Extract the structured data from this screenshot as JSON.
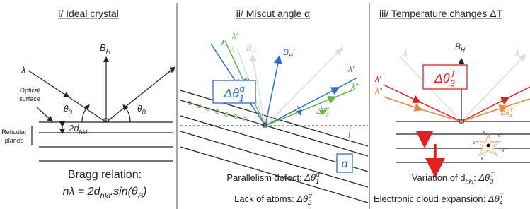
{
  "panels": [
    {
      "title": "i/ Ideal crystal",
      "incident": "λ",
      "reflected": "λ",
      "normal": {
        "base": "B",
        "sub": "H"
      },
      "angle_left": {
        "base": "θ",
        "sub": "B"
      },
      "angle_right": {
        "base": "θ",
        "sub": "B"
      },
      "spacing": {
        "base": "2d",
        "sub": "hkl"
      },
      "surface_label": [
        "Optical",
        "surface"
      ],
      "planes_label": [
        "Reticular",
        "planes"
      ],
      "caption": [
        "Bragg relation:",
        {
          "a": "nλ = 2d",
          "sub1": "hkl",
          "b": ".sin(θ",
          "sub2": "B",
          "c": ")"
        }
      ]
    },
    {
      "title": "ii/ Miscut angle α",
      "faded_incident": "λ",
      "faded_reflected": "λ",
      "faded_normal": {
        "base": "B",
        "sub": "H"
      },
      "incident_blue": "λ′",
      "incident_green": "λ″",
      "reflected_blue": "λ′",
      "reflected_green": "λ″",
      "normal": {
        "base": "B",
        "sub": "H",
        "prime": "′"
      },
      "box": {
        "base": "Δθ",
        "sub": "1",
        "sup": "α"
      },
      "small": {
        "base": "Δθ",
        "sub": "2",
        "sup": "α"
      },
      "angle_box": "α",
      "caption": [
        {
          "text": "Parallelism defect: ",
          "base": "Δθ",
          "sub": "1",
          "sup": "α"
        },
        {
          "text": "Lack of atoms: ",
          "base": "Δθ",
          "sub": "2",
          "sup": "α"
        }
      ]
    },
    {
      "title": "iii/ Temperature changes ΔT",
      "faded_incident": "λ",
      "faded_reflected": "λ",
      "normal": {
        "base": "B",
        "sub": "H"
      },
      "incident_red": "λ′",
      "incident_orange": "λ″",
      "box": {
        "base": "Δθ",
        "sub": "3",
        "sup": "T"
      },
      "small": {
        "base": "Δθ",
        "sub": "4",
        "sup": "T"
      },
      "electrons": [
        "e⁻",
        "e⁻",
        "e⁻",
        "e⁻",
        "e⁻"
      ],
      "caption": [
        {
          "text": "Variation of d",
          "sub0": "hkl",
          "colon": ": ",
          "base": "Δθ",
          "sub": "3",
          "sup": "T"
        },
        {
          "text": "Electronic cloud expansion: ",
          "base": "Δθ",
          "sub": "4",
          "sup": "T"
        }
      ]
    }
  ]
}
